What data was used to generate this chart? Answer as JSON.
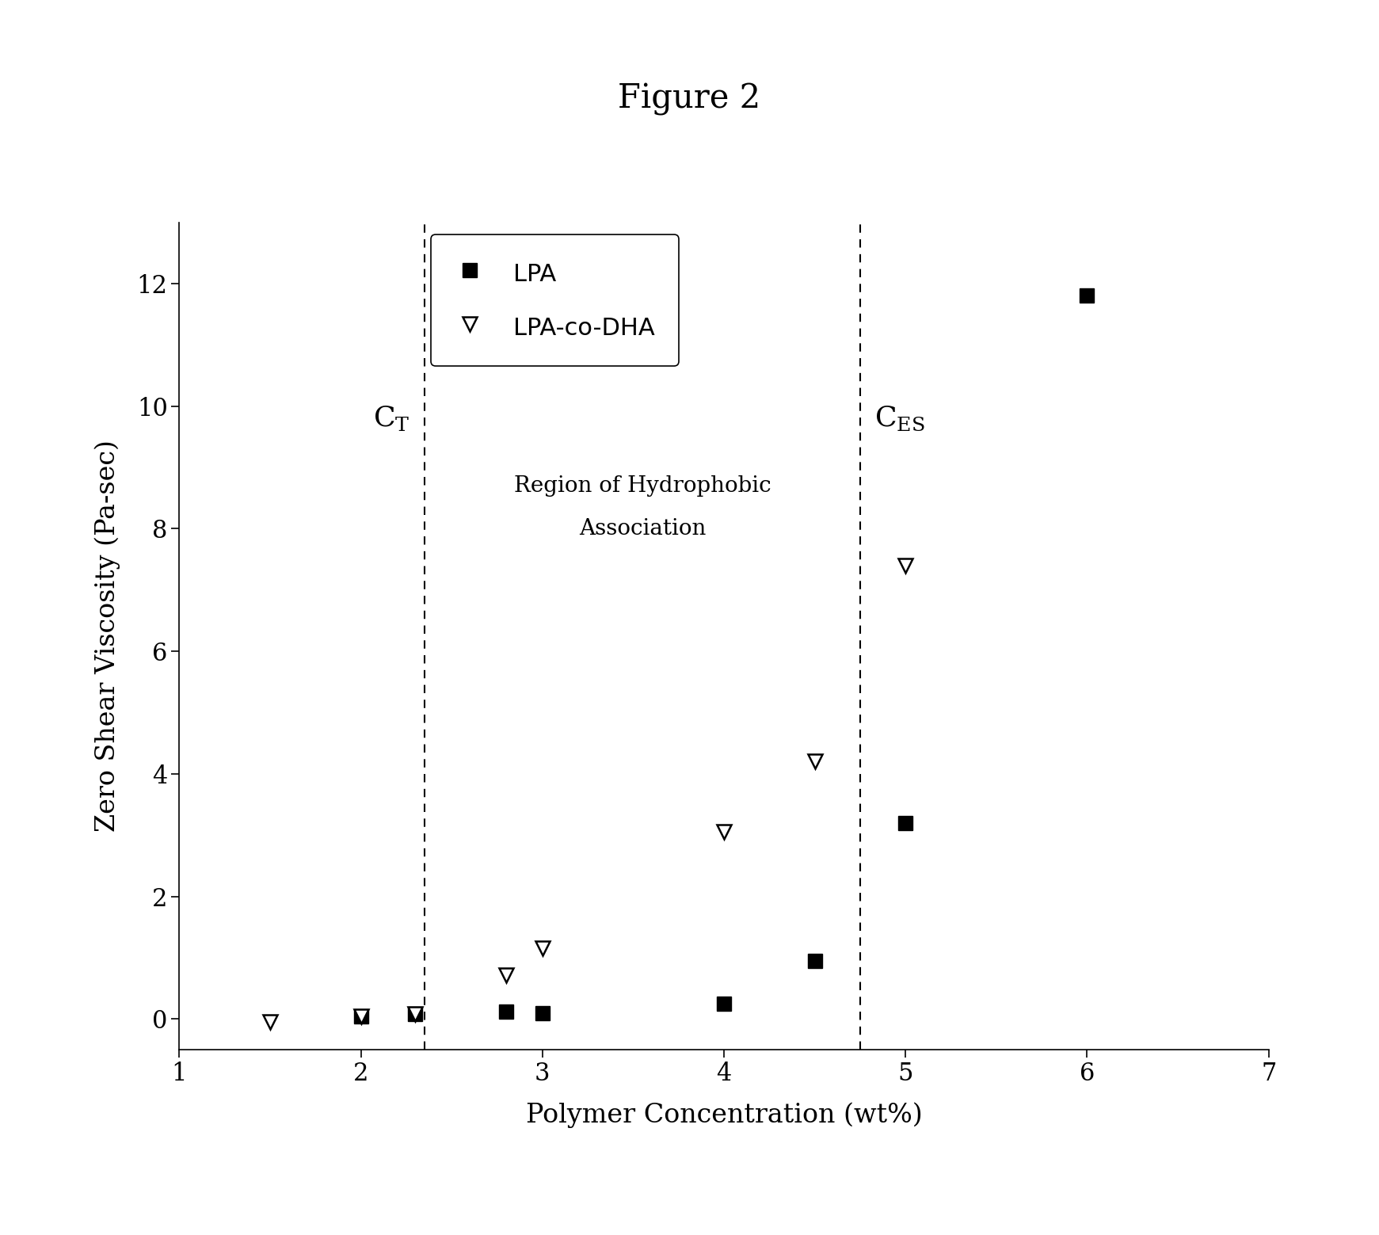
{
  "title": "Figure 2",
  "xlabel": "Polymer Concentration (wt%)",
  "ylabel": "Zero Shear Viscosity (Pa-sec)",
  "xlim": [
    1,
    7
  ],
  "ylim": [
    -0.5,
    13
  ],
  "xticks": [
    1,
    2,
    3,
    4,
    5,
    6,
    7
  ],
  "yticks": [
    0,
    2,
    4,
    6,
    8,
    10,
    12
  ],
  "lpa_x": [
    2.0,
    2.3,
    2.8,
    3.0,
    4.0,
    4.5,
    5.0,
    6.0
  ],
  "lpa_y": [
    0.05,
    0.08,
    0.12,
    0.1,
    0.25,
    0.95,
    3.2,
    11.8
  ],
  "lpa_co_dha_x": [
    1.5,
    2.0,
    2.3,
    2.8,
    3.0,
    4.0,
    4.5,
    5.0
  ],
  "lpa_co_dha_y": [
    -0.05,
    0.05,
    0.08,
    0.72,
    1.15,
    3.05,
    4.2,
    7.4
  ],
  "ct_x": 2.35,
  "ces_x": 4.75,
  "region_label_line1": "Region of Hydrophobic",
  "region_label_line2": "Association",
  "background_color": "#ffffff",
  "marker_color": "#000000",
  "legend_lpa": "LPA",
  "legend_lpa_co_dha": "LPA-co-DHA",
  "title_fontsize": 30,
  "label_fontsize": 24,
  "tick_fontsize": 22,
  "legend_fontsize": 22,
  "annotation_fontsize": 24,
  "region_fontsize": 20
}
